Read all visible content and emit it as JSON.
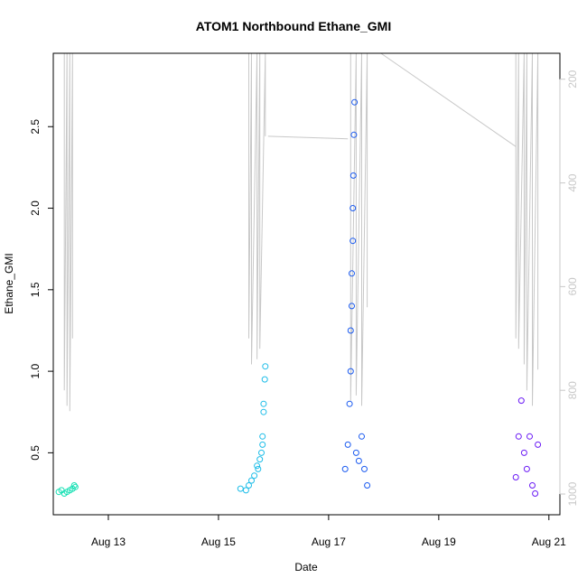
{
  "chart_data": {
    "type": "scatter",
    "title": "ATOM1 Northbound Ethane_GMI",
    "xlabel": "Date",
    "ylabel": "Ethane_GMI",
    "x_ticks": [
      "Aug 13",
      "Aug 15",
      "Aug 17",
      "Aug 19",
      "Aug 21"
    ],
    "x_tick_values": [
      13,
      15,
      17,
      19,
      21
    ],
    "xlim": [
      12.0,
      21.2
    ],
    "y_ticks": [
      "0.5",
      "1.0",
      "1.5",
      "2.0",
      "2.5"
    ],
    "y_tick_values": [
      0.5,
      1.0,
      1.5,
      2.0,
      2.5
    ],
    "ylim": [
      0.12,
      2.95
    ],
    "right_axis": {
      "label": "",
      "ticks": [
        "200",
        "400",
        "600",
        "800",
        "1000"
      ],
      "tick_values": [
        200,
        400,
        600,
        800,
        1000
      ],
      "lim": [
        1040,
        150
      ],
      "reversed": true,
      "color": "#c8c8c8"
    },
    "series": [
      {
        "color": "#16e0b4",
        "x": [
          12.1,
          12.15,
          12.2,
          12.25,
          12.3,
          12.35,
          12.38,
          12.4
        ],
        "y": [
          0.26,
          0.27,
          0.25,
          0.26,
          0.27,
          0.28,
          0.3,
          0.29
        ]
      },
      {
        "color": "#1dbde8",
        "x": [
          15.4,
          15.5,
          15.55,
          15.6,
          15.65,
          15.7,
          15.72,
          15.75,
          15.78,
          15.8,
          15.8,
          15.82,
          15.82,
          15.84,
          15.85
        ],
        "y": [
          0.28,
          0.27,
          0.3,
          0.33,
          0.36,
          0.42,
          0.4,
          0.46,
          0.5,
          0.55,
          0.6,
          0.75,
          0.8,
          0.95,
          1.03
        ]
      },
      {
        "color": "#1a5af0",
        "x": [
          17.3,
          17.35,
          17.38,
          17.4,
          17.4,
          17.42,
          17.42,
          17.44,
          17.44,
          17.45,
          17.46,
          17.47,
          17.5,
          17.55,
          17.6,
          17.65,
          17.7
        ],
        "y": [
          0.4,
          0.55,
          0.8,
          1.0,
          1.25,
          1.4,
          1.6,
          1.8,
          2.0,
          2.2,
          2.45,
          2.65,
          0.5,
          0.45,
          0.6,
          0.4,
          0.3
        ]
      },
      {
        "color": "#6a1af5",
        "x": [
          20.4,
          20.45,
          20.5,
          20.55,
          20.6,
          20.65,
          20.7,
          20.75,
          20.8
        ],
        "y": [
          0.35,
          0.6,
          0.82,
          0.5,
          0.4,
          0.6,
          0.3,
          0.25,
          0.55
        ]
      }
    ],
    "pressure_line": {
      "color": "#c8c8c8",
      "note_axis": "right",
      "segments": [
        {
          "x": [
            12.2,
            12.2,
            12.25,
            12.25,
            12.3,
            12.3,
            12.35,
            12.35
          ],
          "y": [
            150,
            800,
            150,
            830,
            150,
            840,
            150,
            700
          ]
        },
        {
          "x": [
            15.55,
            15.55,
            15.6,
            15.6,
            15.7,
            15.7,
            15.75,
            15.75,
            15.85,
            15.85
          ],
          "y": [
            150,
            700,
            150,
            750,
            150,
            740,
            150,
            720,
            150,
            310
          ]
        },
        {
          "x": [
            15.9,
            17.35
          ],
          "y": [
            310,
            315
          ]
        },
        {
          "x": [
            17.4,
            17.4,
            17.5,
            17.5,
            17.6,
            17.6,
            17.7,
            17.7
          ],
          "y": [
            150,
            820,
            150,
            810,
            150,
            830,
            150,
            640
          ]
        },
        {
          "x": [
            17.95,
            20.4
          ],
          "y": [
            150,
            330
          ]
        },
        {
          "x": [
            20.4,
            20.4,
            20.45,
            20.45,
            20.55,
            20.55,
            20.6,
            20.6,
            20.7,
            20.7,
            20.8,
            20.8
          ],
          "y": [
            150,
            700,
            150,
            720,
            150,
            750,
            150,
            800,
            150,
            830,
            150,
            760
          ]
        }
      ]
    },
    "grid": false,
    "legend": "none"
  }
}
